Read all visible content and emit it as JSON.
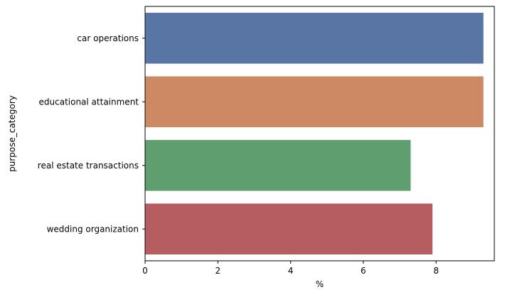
{
  "chart_data": {
    "type": "bar",
    "orientation": "horizontal",
    "categories": [
      "car operations",
      "educational attainment",
      "real estate transactions",
      "wedding organization"
    ],
    "values": [
      9.3,
      9.3,
      7.3,
      7.9
    ],
    "colors": [
      "#5875a4",
      "#cc8963",
      "#5f9e6e",
      "#b55d60"
    ],
    "title": "",
    "xlabel": "%",
    "ylabel": "purpose_category",
    "xlim": [
      0,
      9.6
    ],
    "xticks": [
      0,
      2,
      4,
      6,
      8
    ],
    "grid": false,
    "legend": "none"
  }
}
